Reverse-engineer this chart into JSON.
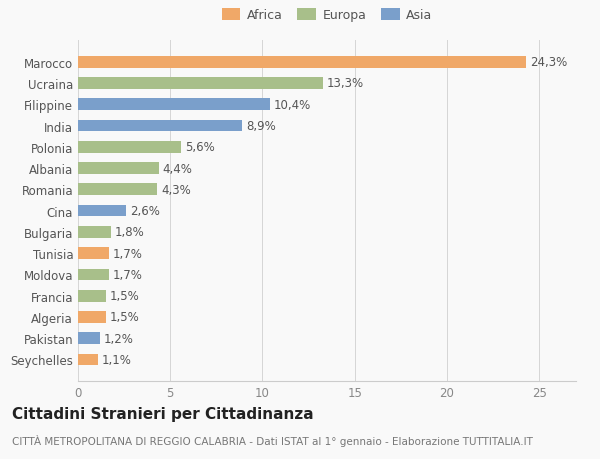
{
  "categories": [
    "Seychelles",
    "Pakistan",
    "Algeria",
    "Francia",
    "Moldova",
    "Tunisia",
    "Bulgaria",
    "Cina",
    "Romania",
    "Albania",
    "Polonia",
    "India",
    "Filippine",
    "Ucraina",
    "Marocco"
  ],
  "values": [
    1.1,
    1.2,
    1.5,
    1.5,
    1.7,
    1.7,
    1.8,
    2.6,
    4.3,
    4.4,
    5.6,
    8.9,
    10.4,
    13.3,
    24.3
  ],
  "labels": [
    "1,1%",
    "1,2%",
    "1,5%",
    "1,5%",
    "1,7%",
    "1,7%",
    "1,8%",
    "2,6%",
    "4,3%",
    "4,4%",
    "5,6%",
    "8,9%",
    "10,4%",
    "13,3%",
    "24,3%"
  ],
  "colors": [
    "#f0a868",
    "#7a9fcb",
    "#f0a868",
    "#a8bf8a",
    "#a8bf8a",
    "#f0a868",
    "#a8bf8a",
    "#7a9fcb",
    "#a8bf8a",
    "#a8bf8a",
    "#a8bf8a",
    "#7a9fcb",
    "#7a9fcb",
    "#a8bf8a",
    "#f0a868"
  ],
  "legend_labels": [
    "Africa",
    "Europa",
    "Asia"
  ],
  "legend_colors": [
    "#f0a868",
    "#a8bf8a",
    "#7a9fcb"
  ],
  "title": "Cittadini Stranieri per Cittadinanza",
  "subtitle": "CITTÀ METROPOLITANA DI REGGIO CALABRIA - Dati ISTAT al 1° gennaio - Elaborazione TUTTITALIA.IT",
  "xlim": [
    0,
    27
  ],
  "xticks": [
    0,
    5,
    10,
    15,
    20,
    25
  ],
  "background_color": "#f9f9f9",
  "bar_height": 0.55,
  "title_fontsize": 11,
  "subtitle_fontsize": 7.5,
  "label_fontsize": 8.5,
  "tick_fontsize": 8.5,
  "legend_fontsize": 9
}
